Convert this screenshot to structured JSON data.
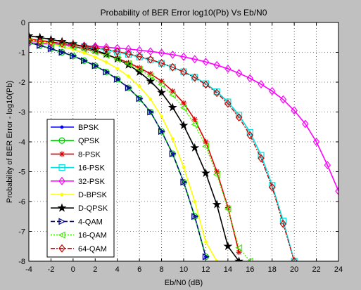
{
  "chart_data": {
    "type": "line",
    "title": "Probability of BER Error log10(Pb) Vs Eb/N0",
    "xlabel": "Eb/N0 (dB)",
    "ylabel": "Probability of BER Error - log10(Pb)",
    "xlim": [
      -4,
      24
    ],
    "ylim": [
      -8,
      0
    ],
    "xticks": [
      "-4",
      "-2",
      "0",
      "2",
      "4",
      "6",
      "8",
      "10",
      "12",
      "14",
      "16",
      "18",
      "20",
      "22",
      "24"
    ],
    "yticks": [
      "0",
      "-1",
      "-2",
      "-3",
      "-4",
      "-5",
      "-6",
      "-7",
      "-8"
    ],
    "grid": true,
    "legend_position": "lower-left",
    "series": [
      {
        "name": "BPSK",
        "color": "#0000ff",
        "dash": "solid",
        "marker": "point",
        "x": [
          -4,
          -3,
          -2,
          -1,
          0,
          1,
          2,
          3,
          4,
          5,
          6,
          7,
          8,
          9,
          10,
          11,
          12
        ],
        "y": [
          -0.68,
          -0.77,
          -0.88,
          -1.0,
          -1.12,
          -1.28,
          -1.45,
          -1.66,
          -1.9,
          -2.19,
          -2.55,
          -3.0,
          -3.65,
          -4.4,
          -5.35,
          -6.5,
          -7.85
        ]
      },
      {
        "name": "QPSK",
        "color": "#00cc00",
        "dash": "solid",
        "marker": "circle",
        "x": [
          -4,
          -3,
          -2,
          -1,
          0,
          1,
          2,
          3,
          4,
          5,
          6,
          7,
          8,
          9,
          10,
          11,
          12
        ],
        "y": [
          -0.68,
          -0.77,
          -0.88,
          -1.0,
          -1.12,
          -1.28,
          -1.45,
          -1.66,
          -1.9,
          -2.19,
          -2.55,
          -3.0,
          -3.65,
          -4.4,
          -5.35,
          -6.5,
          -7.85
        ]
      },
      {
        "name": "8-PSK",
        "color": "#dd0000",
        "dash": "solid",
        "marker": "star",
        "x": [
          -4,
          -3,
          -2,
          -1,
          0,
          1,
          2,
          3,
          4,
          5,
          6,
          7,
          8,
          9,
          10,
          11,
          12,
          13,
          14,
          15
        ],
        "y": [
          -0.55,
          -0.6,
          -0.65,
          -0.72,
          -0.8,
          -0.88,
          -0.97,
          -1.08,
          -1.2,
          -1.35,
          -1.52,
          -1.72,
          -1.97,
          -2.3,
          -2.7,
          -3.25,
          -4.0,
          -5.0,
          -6.2,
          -7.7
        ]
      },
      {
        "name": "16-PSK",
        "color": "#00e0e0",
        "dash": "solid",
        "marker": "square",
        "x": [
          -4,
          -3,
          -2,
          -1,
          0,
          1,
          2,
          3,
          4,
          5,
          6,
          7,
          8,
          9,
          10,
          11,
          12,
          13,
          14,
          15,
          16,
          17,
          18,
          19,
          20
        ],
        "y": [
          -0.62,
          -0.65,
          -0.68,
          -0.72,
          -0.76,
          -0.81,
          -0.86,
          -0.92,
          -0.99,
          -1.07,
          -1.16,
          -1.26,
          -1.37,
          -1.5,
          -1.65,
          -1.83,
          -2.05,
          -2.32,
          -2.66,
          -3.1,
          -3.68,
          -4.45,
          -5.45,
          -6.65,
          -8.0
        ]
      },
      {
        "name": "32-PSK",
        "color": "#ff00ff",
        "dash": "solid",
        "marker": "diamond",
        "x": [
          -4,
          -3,
          -2,
          -1,
          0,
          1,
          2,
          3,
          4,
          5,
          6,
          7,
          8,
          9,
          10,
          11,
          12,
          13,
          14,
          15,
          16,
          17,
          18,
          19,
          20,
          21,
          22,
          23,
          24
        ],
        "y": [
          -0.68,
          -0.7,
          -0.72,
          -0.74,
          -0.76,
          -0.78,
          -0.8,
          -0.83,
          -0.86,
          -0.89,
          -0.93,
          -0.97,
          -1.02,
          -1.08,
          -1.15,
          -1.23,
          -1.32,
          -1.43,
          -1.55,
          -1.7,
          -1.87,
          -2.07,
          -2.3,
          -2.58,
          -2.95,
          -3.4,
          -4.0,
          -4.78,
          -5.65
        ]
      },
      {
        "name": "D-BPSK",
        "color": "#ffff00",
        "dash": "solid",
        "marker": "point",
        "x": [
          -4,
          -3,
          -2,
          -1,
          0,
          1,
          2,
          3,
          4,
          5,
          6,
          7,
          8,
          9,
          10,
          11,
          12,
          13
        ],
        "y": [
          -0.58,
          -0.64,
          -0.71,
          -0.8,
          -0.9,
          -1.02,
          -1.16,
          -1.33,
          -1.54,
          -1.8,
          -2.14,
          -2.57,
          -3.15,
          -3.9,
          -4.85,
          -6.0,
          -7.35,
          -8.0
        ]
      },
      {
        "name": "D-QPSK",
        "color": "#000000",
        "dash": "solid",
        "marker": "pentagram",
        "x": [
          -4,
          -3,
          -2,
          -1,
          0,
          1,
          2,
          3,
          4,
          5,
          6,
          7,
          8,
          9,
          10,
          11,
          12,
          13,
          14,
          15
        ],
        "y": [
          -0.45,
          -0.5,
          -0.57,
          -0.64,
          -0.72,
          -0.82,
          -0.93,
          -1.06,
          -1.22,
          -1.42,
          -1.66,
          -1.97,
          -2.35,
          -2.85,
          -3.45,
          -4.2,
          -5.05,
          -6.1,
          -7.5,
          -8.0
        ]
      },
      {
        "name": "4-QAM",
        "color": "#000080",
        "dash": "dashed",
        "marker": "triangle-right",
        "x": [
          -4,
          -3,
          -2,
          -1,
          0,
          1,
          2,
          3,
          4,
          5,
          6,
          7,
          8,
          9,
          10,
          11,
          12
        ],
        "y": [
          -0.68,
          -0.77,
          -0.88,
          -1.0,
          -1.12,
          -1.28,
          -1.45,
          -1.66,
          -1.9,
          -2.19,
          -2.55,
          -3.0,
          -3.65,
          -4.4,
          -5.35,
          -6.5,
          -7.85
        ]
      },
      {
        "name": "16-QAM",
        "color": "#44ee00",
        "dash": "dotted",
        "marker": "triangle-left",
        "x": [
          -4,
          -3,
          -2,
          -1,
          0,
          1,
          2,
          3,
          4,
          5,
          6,
          7,
          8,
          9,
          10,
          11,
          12,
          13,
          14,
          15,
          16
        ],
        "y": [
          -0.62,
          -0.66,
          -0.71,
          -0.76,
          -0.83,
          -0.9,
          -0.99,
          -1.1,
          -1.23,
          -1.38,
          -1.57,
          -1.8,
          -2.08,
          -2.43,
          -2.86,
          -3.42,
          -4.15,
          -5.1,
          -6.25,
          -7.55,
          -8.0
        ]
      },
      {
        "name": "64-QAM",
        "color": "#cc0000",
        "dash": "dashdot",
        "marker": "diamond",
        "x": [
          -4,
          -3,
          -2,
          -1,
          0,
          1,
          2,
          3,
          4,
          5,
          6,
          7,
          8,
          9,
          10,
          11,
          12,
          13,
          14,
          15,
          16,
          17,
          18,
          19,
          20
        ],
        "y": [
          -0.6,
          -0.63,
          -0.66,
          -0.7,
          -0.74,
          -0.79,
          -0.84,
          -0.9,
          -0.97,
          -1.05,
          -1.14,
          -1.24,
          -1.36,
          -1.5,
          -1.66,
          -1.85,
          -2.08,
          -2.36,
          -2.72,
          -3.18,
          -3.78,
          -4.55,
          -5.52,
          -6.75,
          -8.0
        ]
      }
    ]
  }
}
